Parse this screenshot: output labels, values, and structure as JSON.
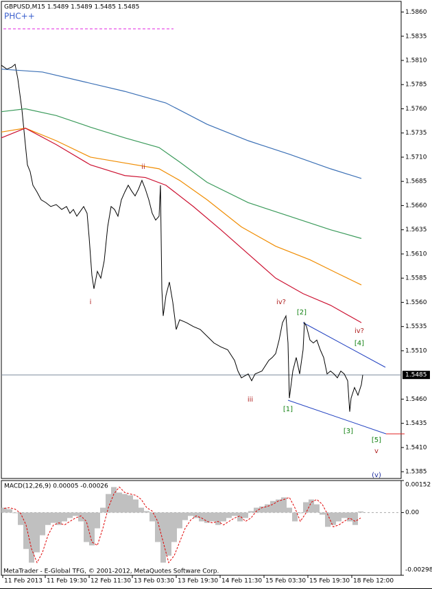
{
  "chart_data": [
    {
      "type": "line",
      "title": "GBPUSD,M15 1.5489 1.5489 1.5485 1.5485",
      "subtitle": "PHC++",
      "xlim": [
        0,
        583
      ],
      "xticks": [
        {
          "value": 2,
          "label": "11 Feb 2013"
        },
        {
          "value": 64,
          "label": "11 Feb 19:30"
        },
        {
          "value": 128,
          "label": "12 Feb 11:30"
        },
        {
          "value": 191,
          "label": "13 Feb 03:30"
        },
        {
          "value": 255,
          "label": "13 Feb 19:30"
        },
        {
          "value": 319,
          "label": "14 Feb 11:30"
        },
        {
          "value": 383,
          "label": "15 Feb 03:30"
        },
        {
          "value": 447,
          "label": "15 Feb 19:30"
        },
        {
          "value": 511,
          "label": "18 Feb 12:00"
        }
      ],
      "ylim": [
        1.5378,
        1.5871
      ],
      "yticks": [
        {
          "value": 1.586,
          "label": "1.5860"
        },
        1.5835,
        {
          "value": 1.581,
          "label": "1.5810"
        },
        1.5785,
        {
          "value": 1.576,
          "label": "1.5760"
        },
        1.5735,
        {
          "value": 1.571,
          "label": "1.5710"
        },
        1.5685,
        {
          "value": 1.566,
          "label": "1.5660"
        },
        1.5635,
        {
          "value": 1.561,
          "label": "1.5610"
        },
        1.5585,
        {
          "value": 1.556,
          "label": "1.5560"
        },
        1.5535,
        {
          "value": 1.551,
          "label": "1.5510"
        },
        {
          "value": 1.546,
          "label": "1.5460"
        },
        1.5435,
        {
          "value": 1.541,
          "label": "1.5410"
        },
        1.5385
      ],
      "last_price": 1.5485,
      "series": [
        {
          "color": "#000000",
          "x": [
            0,
            8,
            15,
            20,
            24,
            30,
            35,
            38,
            42,
            46,
            52,
            58,
            65,
            72,
            80,
            88,
            95,
            100,
            105,
            110,
            115,
            120,
            125,
            128,
            132,
            135,
            140,
            145,
            150,
            155,
            160,
            165,
            170,
            175,
            180,
            185,
            190,
            195,
            200,
            205,
            210,
            215,
            220,
            225,
            230,
            232,
            234,
            236,
            240,
            245,
            250,
            255,
            260,
            270,
            280,
            290,
            300,
            310,
            320,
            330,
            340,
            345,
            350,
            360,
            365,
            370,
            380,
            390,
            395,
            400,
            405,
            410,
            415,
            418,
            420,
            425,
            430,
            435,
            440,
            442,
            445,
            450,
            455,
            460,
            465,
            470,
            475,
            480,
            485,
            490,
            495,
            500,
            505,
            508,
            510,
            515,
            520,
            525,
            527
          ],
          "values": [
            1.5805,
            1.5801,
            1.5803,
            1.5806,
            1.5791,
            1.5759,
            1.5723,
            1.5702,
            1.5695,
            1.5681,
            1.5674,
            1.5666,
            1.5663,
            1.5659,
            1.5661,
            1.5656,
            1.5659,
            1.5652,
            1.5656,
            1.5649,
            1.5654,
            1.5659,
            1.5652,
            1.5627,
            1.5588,
            1.5574,
            1.5592,
            1.5585,
            1.5603,
            1.5638,
            1.5659,
            1.5656,
            1.5649,
            1.5666,
            1.5674,
            1.5681,
            1.5675,
            1.567,
            1.5677,
            1.5686,
            1.5677,
            1.5666,
            1.5652,
            1.5645,
            1.5649,
            1.5681,
            1.5574,
            1.5546,
            1.5567,
            1.5581,
            1.556,
            1.5532,
            1.5542,
            1.5539,
            1.5535,
            1.5532,
            1.5525,
            1.5518,
            1.5514,
            1.5511,
            1.55,
            1.5489,
            1.5482,
            1.5486,
            1.5479,
            1.5486,
            1.5489,
            1.55,
            1.5503,
            1.5507,
            1.5521,
            1.5539,
            1.5546,
            1.5518,
            1.5461,
            1.5489,
            1.5503,
            1.5486,
            1.5511,
            1.5539,
            1.5535,
            1.5521,
            1.5518,
            1.5521,
            1.5511,
            1.5503,
            1.5486,
            1.5489,
            1.5486,
            1.5482,
            1.5489,
            1.5486,
            1.5479,
            1.5447,
            1.5461,
            1.5472,
            1.5464,
            1.5475,
            1.5485
          ]
        },
        {
          "color": "#3a6fb5",
          "x": [
            0,
            60,
            120,
            180,
            240,
            300,
            360,
            420,
            480,
            525
          ],
          "values": [
            1.5801,
            1.5798,
            1.5788,
            1.5778,
            1.5766,
            1.5744,
            1.5727,
            1.5713,
            1.5698,
            1.5688
          ]
        },
        {
          "color": "#3a9a5a",
          "x": [
            0,
            35,
            80,
            130,
            180,
            230,
            260,
            300,
            360,
            420,
            480,
            525
          ],
          "values": [
            1.5757,
            1.576,
            1.5753,
            1.5741,
            1.573,
            1.572,
            1.5705,
            1.5684,
            1.5663,
            1.5649,
            1.5635,
            1.5626
          ]
        },
        {
          "color": "#f08c00",
          "x": [
            0,
            35,
            80,
            130,
            180,
            230,
            260,
            300,
            350,
            400,
            450,
            490,
            525
          ],
          "values": [
            1.5736,
            1.574,
            1.5727,
            1.571,
            1.5704,
            1.5698,
            1.5686,
            1.5666,
            1.5638,
            1.5618,
            1.5604,
            1.559,
            1.5578
          ]
        },
        {
          "color": "#cc1030",
          "x": [
            0,
            35,
            80,
            130,
            180,
            210,
            240,
            280,
            320,
            360,
            400,
            440,
            480,
            525
          ],
          "values": [
            1.573,
            1.574,
            1.5723,
            1.5702,
            1.5691,
            1.5689,
            1.5681,
            1.5659,
            1.5635,
            1.561,
            1.5585,
            1.5569,
            1.5557,
            1.5539
          ]
        }
      ],
      "annotations": [
        "i",
        "ii",
        "iii",
        "iv?",
        "[2]",
        "iv?",
        "[4]",
        "[1]",
        "[3]",
        "[5]",
        "v",
        "(v)"
      ]
    },
    {
      "type": "macd",
      "title": "MACD(12,26,9) 0.00005 -0.00026",
      "xlim": [
        0,
        583
      ],
      "ylim": [
        -0.00298,
        0.00152
      ],
      "yticks": [
        0.00152,
        {
          "value": 0,
          "label": "0.00"
        },
        -0.00298
      ],
      "x": [
        4,
        12,
        20,
        28,
        36,
        44,
        52,
        60,
        68,
        76,
        84,
        92,
        100,
        108,
        116,
        124,
        132,
        140,
        148,
        156,
        164,
        172,
        180,
        188,
        196,
        204,
        212,
        220,
        228,
        236,
        244,
        252,
        260,
        268,
        276,
        284,
        292,
        300,
        308,
        316,
        324,
        332,
        340,
        348,
        356,
        364,
        372,
        380,
        388,
        396,
        404,
        412,
        420,
        428,
        436,
        444,
        452,
        460,
        468,
        476,
        484,
        492,
        500,
        508,
        516,
        524
      ],
      "series": [
        {
          "color": "#c0c0c0",
          "values": [
            0.00023,
            0.00016,
            -3e-05,
            -0.00059,
            -0.00173,
            -0.00238,
            -0.00189,
            -0.00108,
            -0.00059,
            -0.00049,
            -0.00059,
            -0.00042,
            -0.00026,
            -0.00016,
            -0.00042,
            -0.0014,
            -0.00156,
            -0.00075,
            0.00023,
            0.00088,
            0.00121,
            0.00095,
            0.00088,
            0.00082,
            0.00062,
            0.00023,
            7e-05,
            -0.00042,
            -0.0014,
            -0.00238,
            -0.00205,
            -0.0014,
            -0.00075,
            -0.00036,
            -0.00016,
            -0.00026,
            -0.00042,
            -0.00049,
            -0.00042,
            -0.00059,
            -0.00042,
            -0.00026,
            -0.00016,
            -0.00042,
            -0.00026,
            7e-05,
            0.00023,
            0.00029,
            0.00039,
            0.00055,
            0.00062,
            0.00072,
            0.00023,
            -0.00042,
            -3e-05,
            0.00049,
            0.00062,
            0.00039,
            -0.0001,
            -0.00068,
            -0.00059,
            -0.00042,
            -0.00026,
            -0.00042,
            -0.00059,
            5e-05
          ]
        },
        {
          "color": "#e00000",
          "values": [
            0.0002,
            0.00023,
            0.00016,
            -3e-05,
            -0.00059,
            -0.00173,
            -0.00238,
            -0.00189,
            -0.00108,
            -0.00059,
            -0.00049,
            -0.00059,
            -0.00042,
            -0.00026,
            -0.00016,
            -0.00042,
            -0.0014,
            -0.00156,
            -0.00075,
            0.00023,
            0.00088,
            0.00121,
            0.00095,
            0.00088,
            0.00082,
            0.00062,
            0.00023,
            7e-05,
            -0.00042,
            -0.0014,
            -0.00238,
            -0.00205,
            -0.0014,
            -0.00075,
            -0.00036,
            -0.00016,
            -0.00026,
            -0.00042,
            -0.00049,
            -0.00042,
            -0.00059,
            -0.00042,
            -0.00026,
            -0.00016,
            -0.00042,
            -0.00026,
            7e-05,
            0.00023,
            0.00029,
            0.00039,
            0.00055,
            0.00062,
            0.00072,
            0.00023,
            -0.00042,
            -3e-05,
            0.00049,
            0.00062,
            0.00039,
            -0.0001,
            -0.00068,
            -0.00059,
            -0.00042,
            -0.00026,
            -0.00042,
            -0.00026
          ]
        }
      ]
    }
  ],
  "footer": "MetaTrader - E-Global TFG, © 2001-2012, MetaQuotes Software Corp."
}
